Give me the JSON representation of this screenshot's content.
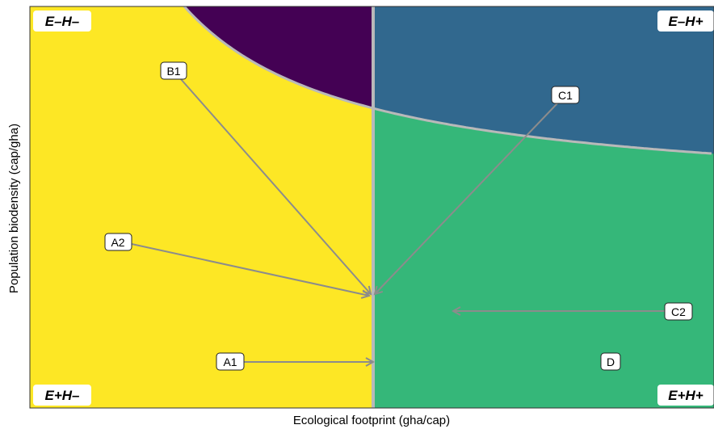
{
  "axes": {
    "xlabel": "Ecological footprint (gha/cap)",
    "ylabel": "Population biodensity (cap/gha)"
  },
  "regions": {
    "top_left_color": "#440154",
    "top_right_color": "#31688e",
    "bottom_left_color": "#fde725",
    "bottom_right_color": "#35b779",
    "boundary_color": "#b9b9b9",
    "arrow_color": "#8c8c8c"
  },
  "corners": {
    "top_left": "E–H–",
    "top_right": "E–H+",
    "bottom_left": "E+H–",
    "bottom_right": "E+H+"
  },
  "points": {
    "a1": "A1",
    "a2": "A2",
    "b1": "B1",
    "c1": "C1",
    "c2": "C2",
    "d": "D"
  }
}
